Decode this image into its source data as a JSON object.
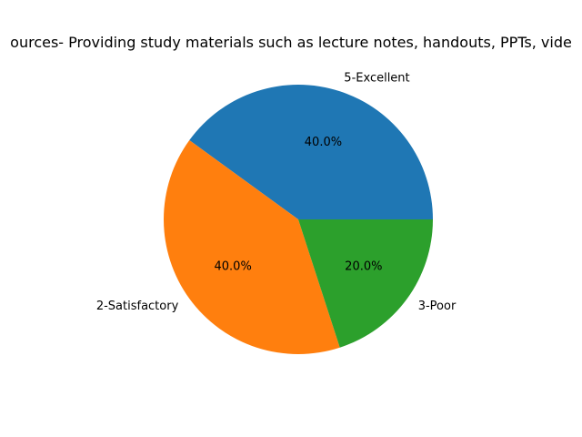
{
  "chart_data": {
    "type": "pie",
    "title": "ources- Providing study materials such as lecture notes, handouts, PPTs, vide",
    "slices": [
      {
        "label": "5-Excellent",
        "value": 40.0,
        "pct_label": "40.0%",
        "color": "#1f77b4"
      },
      {
        "label": "2-Satisfactory",
        "value": 40.0,
        "pct_label": "40.0%",
        "color": "#ff7f0e"
      },
      {
        "label": "3-Poor",
        "value": 20.0,
        "pct_label": "20.0%",
        "color": "#2ca02c"
      }
    ],
    "start_angle_deg": 0,
    "direction": "counterclockwise"
  }
}
